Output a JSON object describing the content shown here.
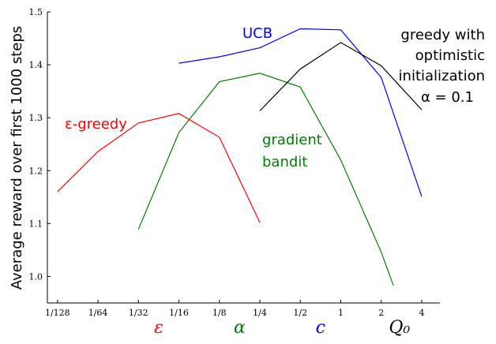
{
  "chart_data": {
    "type": "line",
    "ylabel": "Average reward over first 1000 steps",
    "x_tick_labels": [
      "1/128",
      "1/64",
      "1/32",
      "1/16",
      "1/8",
      "1/4",
      "1/2",
      "1",
      "2",
      "4"
    ],
    "xlim": [
      -0.25,
      9.45
    ],
    "ylim": [
      0.95,
      1.5
    ],
    "y_ticks": [
      1.0,
      1.1,
      1.2,
      1.3,
      1.4,
      1.5
    ],
    "y_tick_labels": [
      "1.0",
      "1.1",
      "1.2",
      "1.3",
      "1.4",
      "1.5"
    ],
    "param_labels": [
      {
        "text": "ε",
        "color": "#ff0000"
      },
      {
        "text": "α",
        "color": "#008000"
      },
      {
        "text": "c",
        "color": "#0000ff"
      },
      {
        "text": "Q₀",
        "color": "#000000"
      }
    ],
    "series": [
      {
        "name": "ε-greedy",
        "color": "#ff0000",
        "x": [
          0,
          1,
          2,
          3,
          4,
          5
        ],
        "values": [
          1.16,
          1.236,
          1.29,
          1.308,
          1.263,
          1.102
        ]
      },
      {
        "name": "gradient bandit",
        "color": "#008000",
        "x": [
          2,
          3,
          4,
          5,
          6,
          7,
          8,
          8.3
        ],
        "values": [
          1.089,
          1.272,
          1.368,
          1.384,
          1.358,
          1.22,
          1.046,
          0.983
        ]
      },
      {
        "name": "UCB",
        "color": "#0000ff",
        "x": [
          3,
          4,
          5,
          6,
          7,
          8,
          9
        ],
        "values": [
          1.403,
          1.415,
          1.432,
          1.468,
          1.466,
          1.376,
          1.151
        ]
      },
      {
        "name": "greedy with optimistic initialization α = 0.1",
        "color": "#000000",
        "x": [
          5,
          6,
          7,
          8,
          9
        ],
        "values": [
          1.313,
          1.392,
          1.442,
          1.398,
          1.315
        ]
      }
    ],
    "annotations": {
      "egreedy": {
        "text": "ε-greedy",
        "color": "#ff0000"
      },
      "gradient_line1": {
        "text": "gradient",
        "color": "#008000"
      },
      "gradient_line2": {
        "text": "bandit",
        "color": "#008000"
      },
      "ucb": {
        "text": "UCB",
        "color": "#0000ff"
      },
      "greedy_line1": {
        "text": "greedy with",
        "color": "#000000"
      },
      "greedy_line2": {
        "text": "optimistic",
        "color": "#000000"
      },
      "greedy_line3": {
        "text": "initialization",
        "color": "#000000"
      },
      "greedy_line4": {
        "text": "α = 0.1",
        "color": "#000000"
      }
    }
  }
}
